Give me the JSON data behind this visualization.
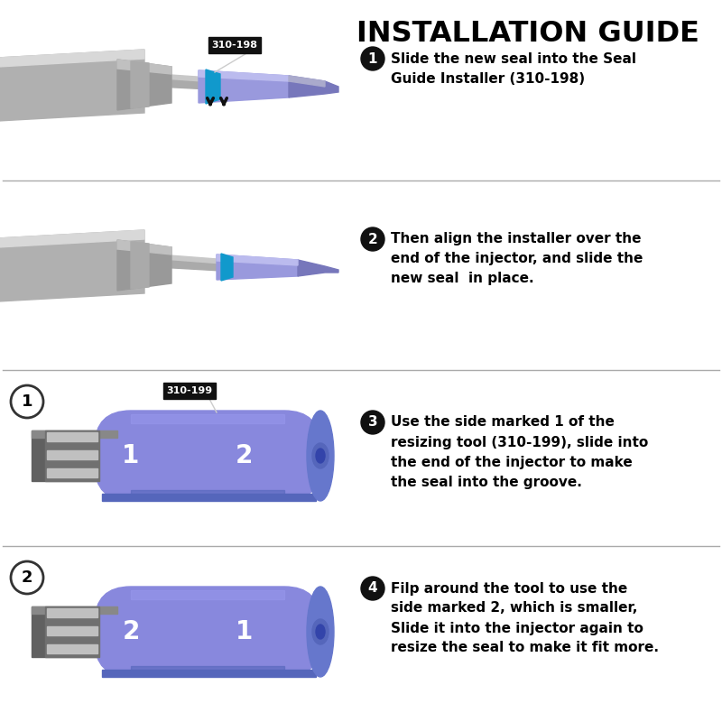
{
  "title": "INSTALLATION GUIDE",
  "title_fontsize": 23,
  "title_fontweight": "bold",
  "background_color": "#ffffff",
  "step1_text_line1": "Slide the new seal into the Seal",
  "step1_text_line2": "Guide Installer (310-198)",
  "step2_text_line1": "Then align the installer over the",
  "step2_text_line2": "end of the injector, and slide the",
  "step2_text_line3": "new seal  in place.",
  "step3_text_line1": "Use the side marked 1 of the",
  "step3_text_line2": "resizing tool (310-199), slide into",
  "step3_text_line3": "the end of the injector to make",
  "step3_text_line4": "the seal into the groove.",
  "step4_text_line1": "Filp around the tool to use the",
  "step4_text_line2": "side marked 2, which is smaller,",
  "step4_text_line3": "Slide it into the injector again to",
  "step4_text_line4": "resize the seal to make it fit more.",
  "label_198": "310-198",
  "label_199": "310-199",
  "gray_dark": "#888888",
  "gray_mid": "#aaaaaa",
  "gray_light": "#cccccc",
  "gray_very_light": "#dddddd",
  "injector_tip_purple": "#9999dd",
  "injector_tip_dark": "#7777bb",
  "seal_cyan": "#1199cc",
  "tool_purple": "#8888dd",
  "tool_purple_mid": "#7777cc",
  "tool_purple_dark": "#5566bb",
  "tool_purple_end": "#6677cc",
  "hole_color": "#5566bb",
  "hole_inner": "#3344aa",
  "text_black": "#000000",
  "label_bg": "#111111",
  "label_fg": "#ffffff",
  "step_circle_bg": "#111111",
  "step_circle_fg": "#ffffff",
  "divider_color": "#aaaaaa",
  "circle_outline": "#333333",
  "arrow_color": "#111111"
}
